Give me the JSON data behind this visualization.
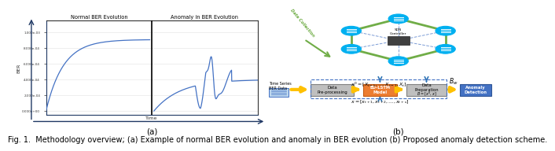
{
  "caption_line1": "Fig. 1.  Methodology overview; (a) Example of normal BER evolution and anomaly in BER evolution (b) Proposed anomaly detection scheme.",
  "label_a": "(a)",
  "label_b": "(b)",
  "fig_width": 6.4,
  "fig_height": 1.71,
  "background_color": "#ffffff",
  "text_color": "#000000",
  "caption_fontsize": 7.0,
  "label_fontsize": 7.5,
  "ytick_labels": [
    "0.000e+00",
    "2.000e-04",
    "4.000e-04",
    "6.000e-04",
    "8.000e-04",
    "1.000e-03"
  ],
  "ytick_vals": [
    0,
    0.0002,
    0.0004,
    0.0006,
    0.0008,
    0.001
  ],
  "panel_left_title1": "Normal BER Evolution",
  "panel_left_title2": "Anomaly in BER Evolution",
  "left_panel_color": "#4472C4",
  "arrow_color": "#1F3864",
  "grid_color": "#D9D9D9",
  "box_gray": "#BFBFBF",
  "box_orange": "#ED7D31",
  "box_blue": "#4472C4",
  "box_edge_gray": "#808080",
  "box_edge_orange": "#C55A11",
  "box_edge_blue": "#2F5597",
  "arrow_yellow": "#FFC000",
  "arrow_blue_dark": "#2E74B5",
  "green_network": "#70AD47",
  "green_label": "#375623",
  "node_color": "#00B0F0",
  "sdn_box_color": "#404040",
  "dashed_blue": "#4472C4",
  "doc_color": "#BDD7EE",
  "doc_edge": "#4472C4"
}
